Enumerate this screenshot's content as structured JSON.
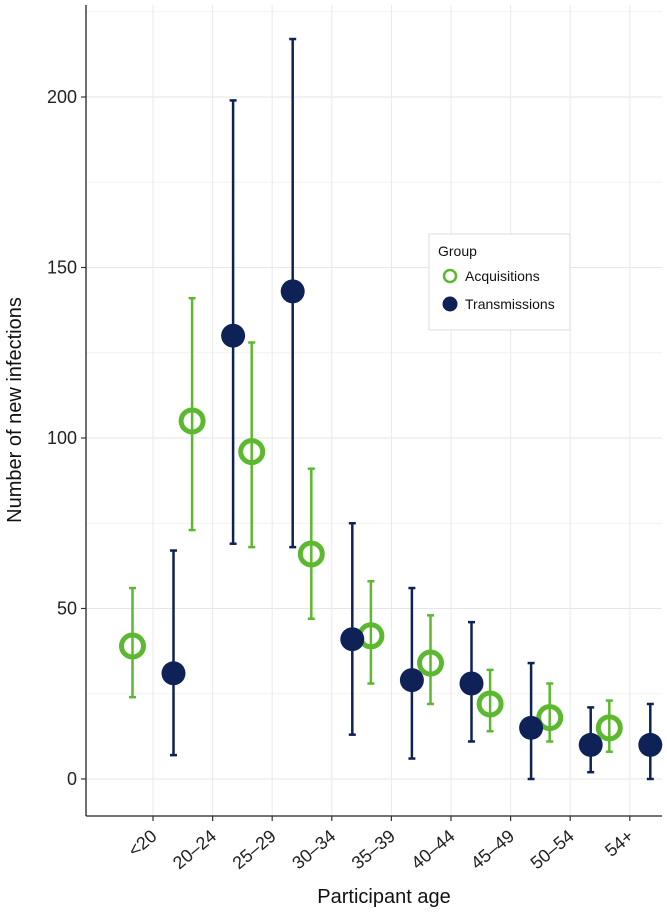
{
  "chart_data": {
    "type": "scatter",
    "title": "",
    "xlabel": "Participant age",
    "ylabel": "Number of new infections",
    "categories": [
      "<20",
      "20–24",
      "25–29",
      "30–34",
      "35–39",
      "40–44",
      "45–49",
      "50–54",
      "54+"
    ],
    "ylim": [
      -11,
      227
    ],
    "yticks": [
      0,
      50,
      100,
      150,
      200
    ],
    "grid": true,
    "legend": {
      "title": "Group",
      "placement": "right",
      "items": [
        "Acquisitions",
        "Transmissions"
      ]
    },
    "series": [
      {
        "name": "Acquisitions",
        "color": "#5cb82e",
        "marker": "open-circle",
        "values": [
          39,
          105,
          96,
          66,
          42,
          34,
          22,
          18,
          15
        ],
        "lower": [
          24,
          73,
          68,
          47,
          28,
          22,
          14,
          11,
          8
        ],
        "upper": [
          56,
          141,
          128,
          91,
          58,
          48,
          32,
          28,
          23
        ]
      },
      {
        "name": "Transmissions",
        "color": "#0f2257",
        "marker": "filled-circle",
        "values": [
          31,
          130,
          143,
          41,
          29,
          28,
          15,
          10,
          10
        ],
        "lower": [
          7,
          69,
          68,
          13,
          6,
          11,
          0,
          2,
          0
        ],
        "upper": [
          67,
          199,
          217,
          75,
          56,
          46,
          34,
          21,
          22
        ]
      }
    ]
  }
}
